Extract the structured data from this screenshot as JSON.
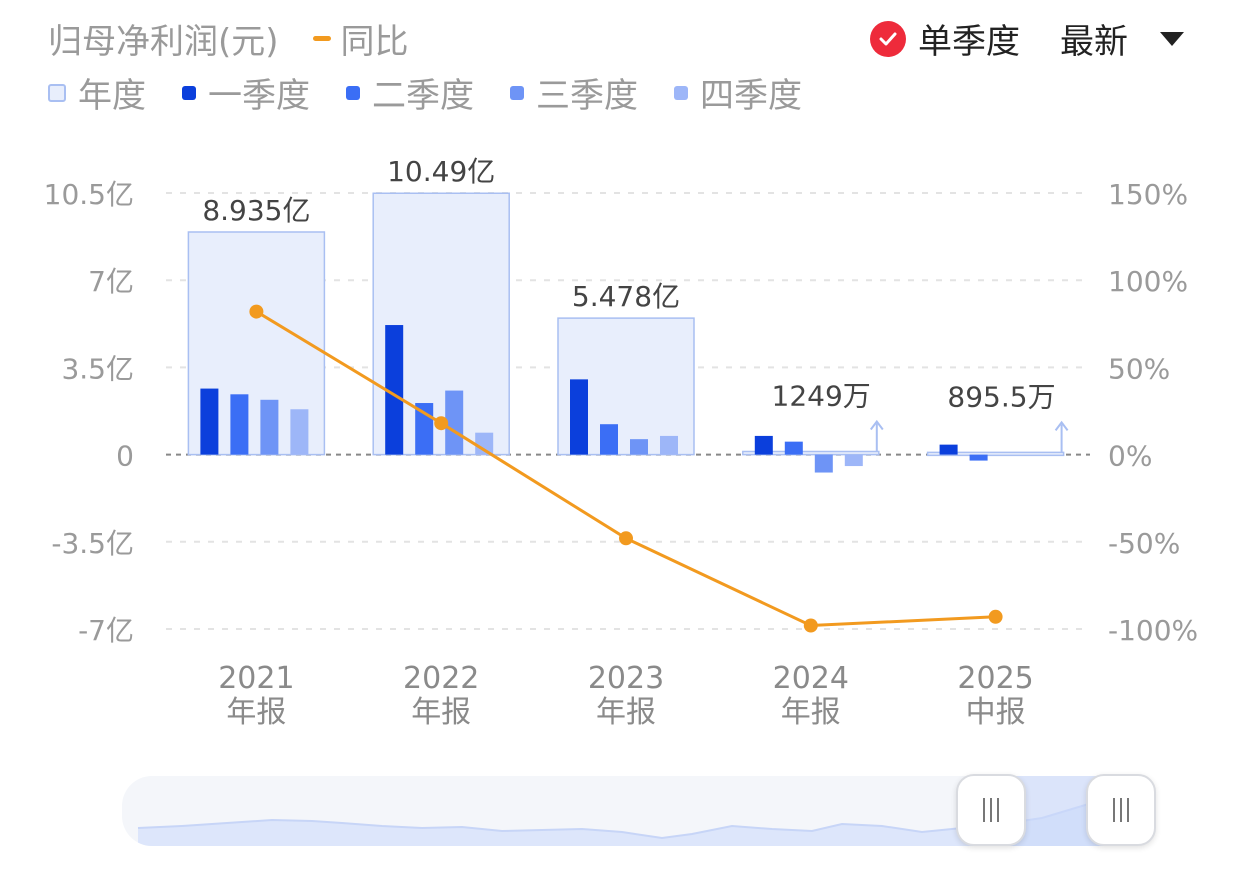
{
  "header": {
    "title": "归母净利润(元)",
    "yoy_label": "同比",
    "single_quarter_label": "单季度",
    "latest_label": "最新"
  },
  "legend": [
    {
      "name": "年度",
      "color": "#e8eefc"
    },
    {
      "name": "一季度",
      "color": "#0b3fdc"
    },
    {
      "name": "二季度",
      "color": "#3b6ef5"
    },
    {
      "name": "三季度",
      "color": "#6e94f6"
    },
    {
      "name": "四季度",
      "color": "#9db6f8"
    }
  ],
  "colors": {
    "annual_fill": "#e8eefc",
    "annual_stroke": "#a9bff2",
    "q1": "#0b3fdc",
    "q2": "#3b6ef5",
    "q3": "#6e94f6",
    "q4": "#9db6f8",
    "yoy_line": "#f29a1f",
    "check": "#ee2b3b"
  },
  "chart_data": {
    "type": "bar",
    "categories": [
      {
        "year": "2021",
        "period": "年报"
      },
      {
        "year": "2022",
        "period": "年报"
      },
      {
        "year": "2023",
        "period": "年报"
      },
      {
        "year": "2024",
        "period": "年报"
      },
      {
        "year": "2025",
        "period": "中报"
      }
    ],
    "annual": [
      8.935,
      10.49,
      5.478,
      0.1249,
      0.08955
    ],
    "annual_labels": [
      "8.935亿",
      "10.49亿",
      "5.478亿",
      "1249万",
      "895.5万"
    ],
    "quarters": [
      [
        2.65,
        2.42,
        2.2,
        1.82
      ],
      [
        5.2,
        2.07,
        2.57,
        0.88
      ],
      [
        3.02,
        1.22,
        0.62,
        0.75
      ],
      [
        0.75,
        0.52,
        -0.72,
        -0.46
      ],
      [
        0.4,
        -0.24,
        null,
        null
      ]
    ],
    "yoy_percent": [
      82,
      18,
      -48,
      -98,
      -93
    ],
    "y_left": {
      "range": [
        -7,
        10.5
      ],
      "ticks": [
        10.5,
        7,
        3.5,
        0,
        -3.5,
        -7
      ],
      "tick_labels": [
        "10.5亿",
        "7亿",
        "3.5亿",
        "0",
        "-3.5亿",
        "-7亿"
      ]
    },
    "y_right": {
      "range": [
        -100,
        150
      ],
      "ticks": [
        150,
        100,
        50,
        0,
        -50,
        -100
      ],
      "tick_labels": [
        "150%",
        "100%",
        "50%",
        "0%",
        "-50%",
        "-100%"
      ]
    },
    "grid": true,
    "legend_position": "top-left"
  }
}
